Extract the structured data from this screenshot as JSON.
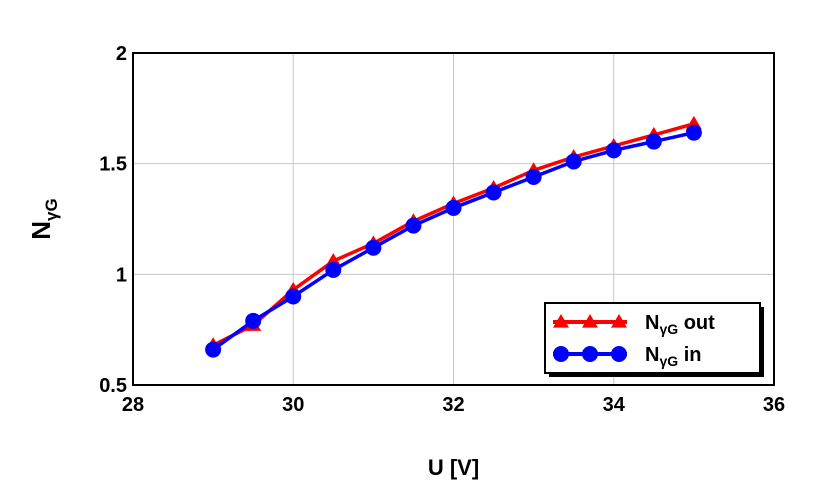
{
  "chart_data": {
    "type": "line",
    "xlabel": "U [V]",
    "ylabel": {
      "main": "N",
      "sub": "γG"
    },
    "xlim": [
      28,
      36
    ],
    "ylim": [
      0.5,
      2
    ],
    "xticks": [
      "28",
      "30",
      "32",
      "34",
      "36"
    ],
    "yticks": [
      "0.5",
      "1",
      "1.5",
      "2"
    ],
    "grid": true,
    "legend_position": "bottom-right",
    "series": [
      {
        "name": "out",
        "label_main": "N",
        "label_sub": "γG",
        "label_suffix": " out",
        "color": "#ff0000",
        "marker": "triangle",
        "x": [
          29,
          29.5,
          30,
          30.5,
          31,
          31.5,
          32,
          32.5,
          33,
          33.5,
          34,
          34.5,
          35
        ],
        "y": [
          0.68,
          0.77,
          0.93,
          1.06,
          1.14,
          1.24,
          1.32,
          1.39,
          1.47,
          1.53,
          1.58,
          1.63,
          1.68
        ]
      },
      {
        "name": "in",
        "label_main": "N",
        "label_sub": "γG",
        "label_suffix": " in",
        "color": "#0000ff",
        "marker": "circle",
        "x": [
          29,
          29.5,
          30,
          30.5,
          31,
          31.5,
          32,
          32.5,
          33,
          33.5,
          34,
          34.5,
          35
        ],
        "y": [
          0.66,
          0.79,
          0.9,
          1.02,
          1.12,
          1.22,
          1.3,
          1.37,
          1.44,
          1.51,
          1.56,
          1.6,
          1.64
        ]
      }
    ]
  }
}
